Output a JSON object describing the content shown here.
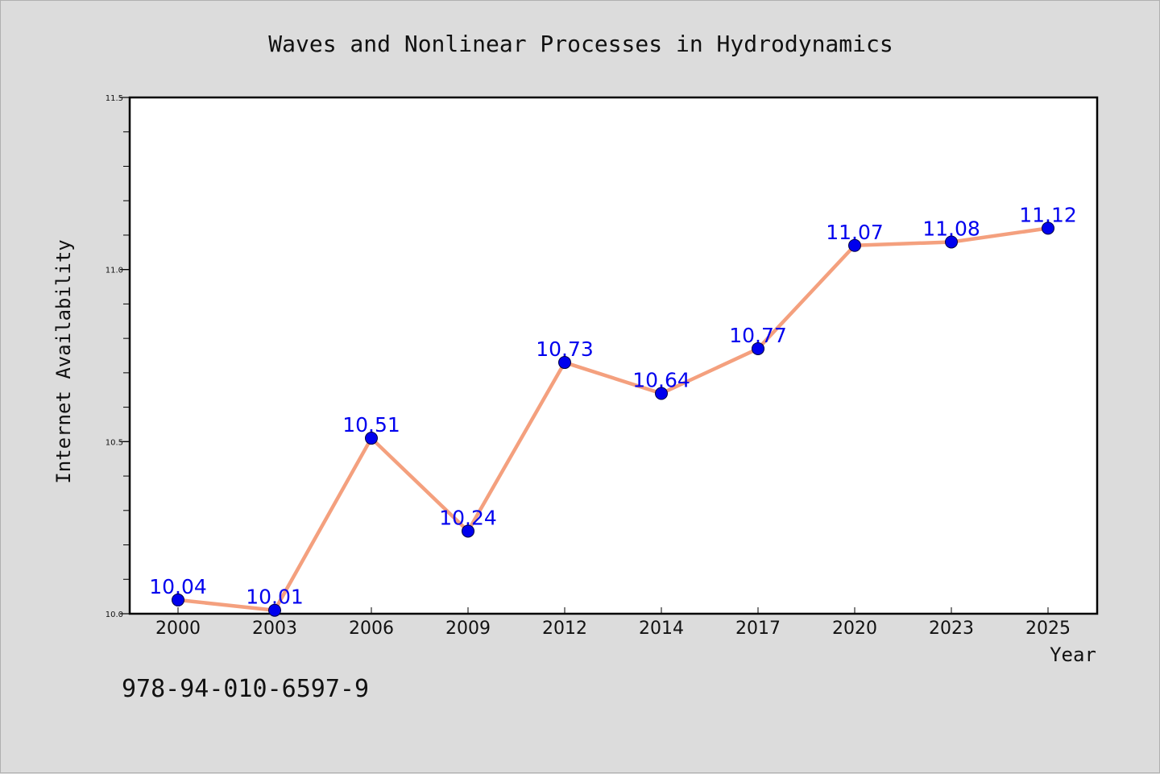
{
  "isbn": "978-94-010-6597-9",
  "colors": {
    "background": "#dcdcdc",
    "plot_background": "#ffffff",
    "line": "#f4a07e",
    "marker": "#0000ee",
    "data_label": "#0000ee"
  },
  "chart_data": {
    "type": "line",
    "title": "Waves and Nonlinear Processes in Hydrodynamics",
    "xlabel": "Year",
    "ylabel": "Internet Availability",
    "categories": [
      "2000",
      "2003",
      "2006",
      "2009",
      "2012",
      "2014",
      "2017",
      "2020",
      "2023",
      "2025"
    ],
    "series": [
      {
        "values": [
          10.04,
          10.01,
          10.51,
          10.24,
          10.73,
          10.64,
          10.77,
          11.07,
          11.08,
          11.12
        ],
        "labels": [
          "10.04",
          "10.01",
          "10.51",
          "10.24",
          "10.73",
          "10.64",
          "10.77",
          "11.07",
          "11.08",
          "11.12"
        ]
      }
    ],
    "ylim": [
      10.0,
      11.5
    ],
    "yticks": [
      "10.0",
      "10.5",
      "11.0",
      "11.5"
    ],
    "grid": false,
    "legend": "none"
  }
}
